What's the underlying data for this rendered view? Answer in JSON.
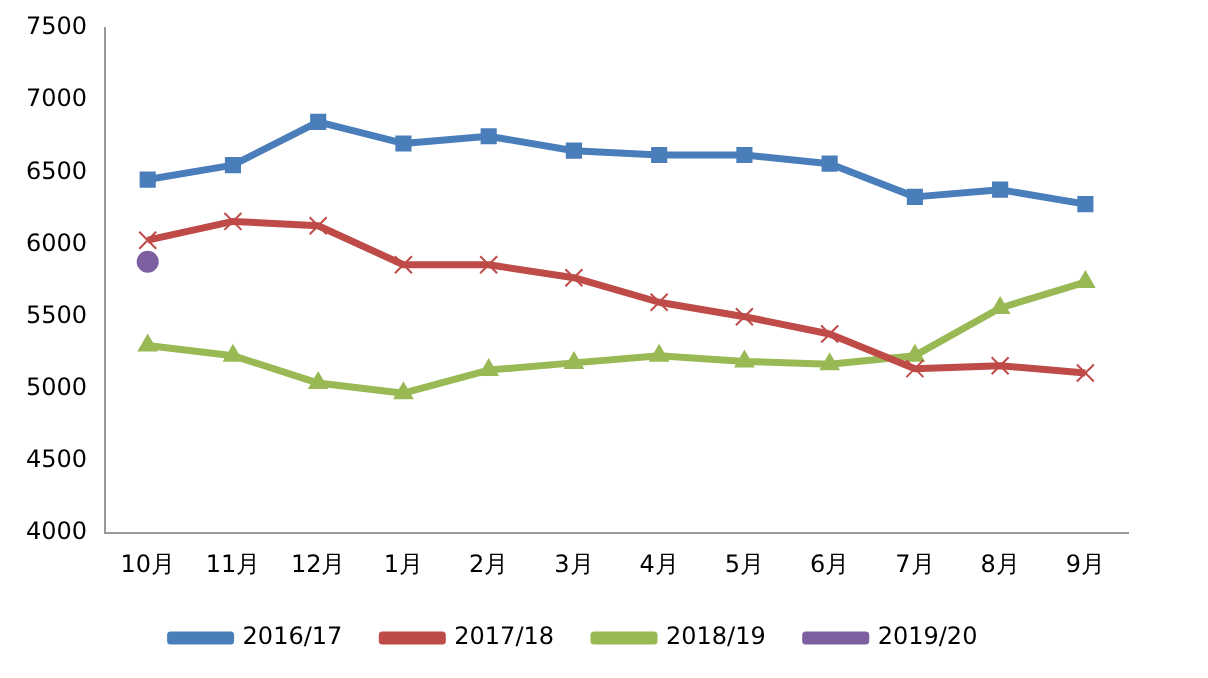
{
  "chart_data": {
    "type": "line",
    "categories": [
      "10月",
      "11月",
      "12月",
      "1月",
      "2月",
      "3月",
      "4月",
      "5月",
      "6月",
      "7月",
      "8月",
      "9月"
    ],
    "series": [
      {
        "name": "2016/17",
        "color": "#4a7ebb",
        "marker": "square",
        "values": [
          6450,
          6550,
          6850,
          6700,
          6750,
          6650,
          6620,
          6620,
          6560,
          6330,
          6380,
          6280
        ]
      },
      {
        "name": "2017/18",
        "color": "#be4b48",
        "marker": "cross",
        "values": [
          6030,
          6160,
          6130,
          5860,
          5860,
          5770,
          5600,
          5500,
          5380,
          5140,
          5160,
          5110
        ]
      },
      {
        "name": "2018/19",
        "color": "#98b954",
        "marker": "triangle",
        "values": [
          5300,
          5230,
          5040,
          4970,
          5130,
          5180,
          5230,
          5190,
          5170,
          5230,
          5560,
          5740
        ]
      },
      {
        "name": "2019/20",
        "color": "#7d60a0",
        "marker": "circle",
        "values": [
          5880,
          null,
          null,
          null,
          null,
          null,
          null,
          null,
          null,
          null,
          null,
          null
        ]
      }
    ],
    "ylim": [
      4000,
      7500
    ],
    "yticks": [
      4000,
      4500,
      5000,
      5500,
      6000,
      6500,
      7000,
      7500
    ],
    "grid": false,
    "legend": "bottom"
  }
}
